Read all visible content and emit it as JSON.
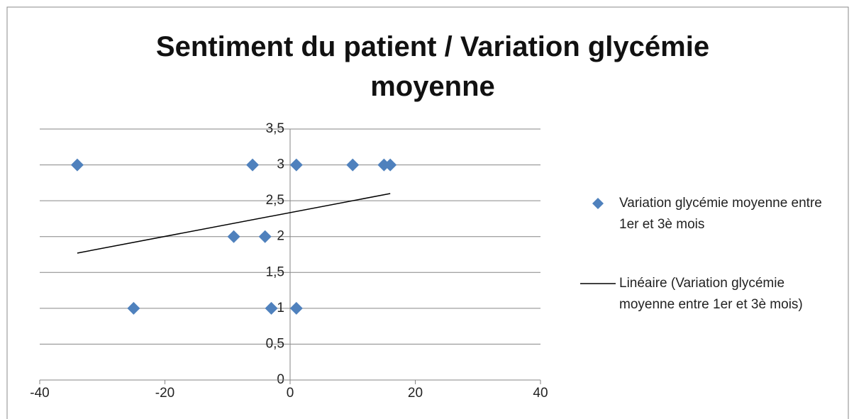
{
  "chart_data": {
    "type": "scatter",
    "title": "Sentiment du patient / Variation glycémie moyenne",
    "series": [
      {
        "name": "Variation glycémie moyenne entre 1er et 3è mois",
        "type": "scatter",
        "color": "#4f81bd",
        "x": [
          -34,
          -6,
          1,
          10,
          15,
          16,
          -9,
          -4,
          -25,
          -3,
          1
        ],
        "values": [
          3,
          3,
          3,
          3,
          3,
          3,
          2,
          2,
          1,
          1,
          1
        ]
      },
      {
        "name": "Linéaire (Variation glycémie moyenne entre 1er et 3è mois)",
        "type": "line",
        "color": "#000000",
        "x": [
          -34,
          16
        ],
        "values": [
          1.77,
          2.6
        ]
      }
    ],
    "xlim": [
      -40,
      40
    ],
    "xticks": [
      -40,
      -20,
      0,
      20,
      40
    ],
    "ylim": [
      0,
      3.5
    ],
    "yticks": [
      0,
      {
        "value": 0.5,
        "label": "0,5"
      },
      1,
      {
        "value": 1.5,
        "label": "1,5"
      },
      2,
      {
        "value": 2.5,
        "label": "2,5"
      },
      3,
      {
        "value": 3.5,
        "label": "3,5"
      }
    ],
    "grid": true,
    "legend": "right"
  }
}
